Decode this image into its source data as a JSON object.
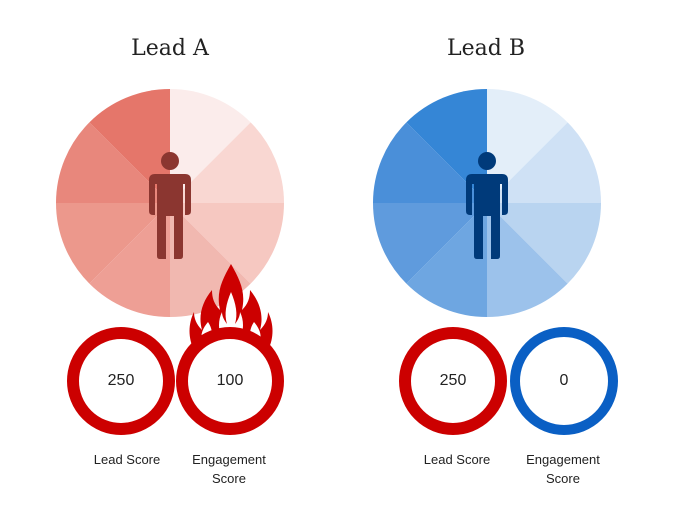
{
  "leads": [
    {
      "title": "Lead A",
      "segment_colors": [
        "#fbeceb",
        "#f9d7d2",
        "#f6c8c1",
        "#f1b8b0",
        "#ee9f95",
        "#ec988c",
        "#e8877c",
        "#e5766a"
      ],
      "person_color": "#8b3630",
      "lead_score": {
        "value": "250",
        "label": "Lead Score",
        "ring_color": "#cc0000"
      },
      "engagement_score": {
        "value": "100",
        "label_line1": "Engagement",
        "label_line2": "Score",
        "ring_color": "#cc0000"
      },
      "flame_icon": "fire-icon",
      "flame_color": "#cc0000"
    },
    {
      "title": "Lead B",
      "segment_colors": [
        "#e3eef9",
        "#cfe1f5",
        "#b9d4f0",
        "#9cc2eb",
        "#6ea6e1",
        "#5f9bdd",
        "#4a8fd9",
        "#3586d6"
      ],
      "person_color": "#003a7a",
      "lead_score": {
        "value": "250",
        "label": "Lead Score",
        "ring_color": "#cc0000"
      },
      "engagement_score": {
        "value": "0",
        "label_line1": "Engagement",
        "label_line2": "Score",
        "ring_color": "#0a5fc4"
      }
    }
  ]
}
